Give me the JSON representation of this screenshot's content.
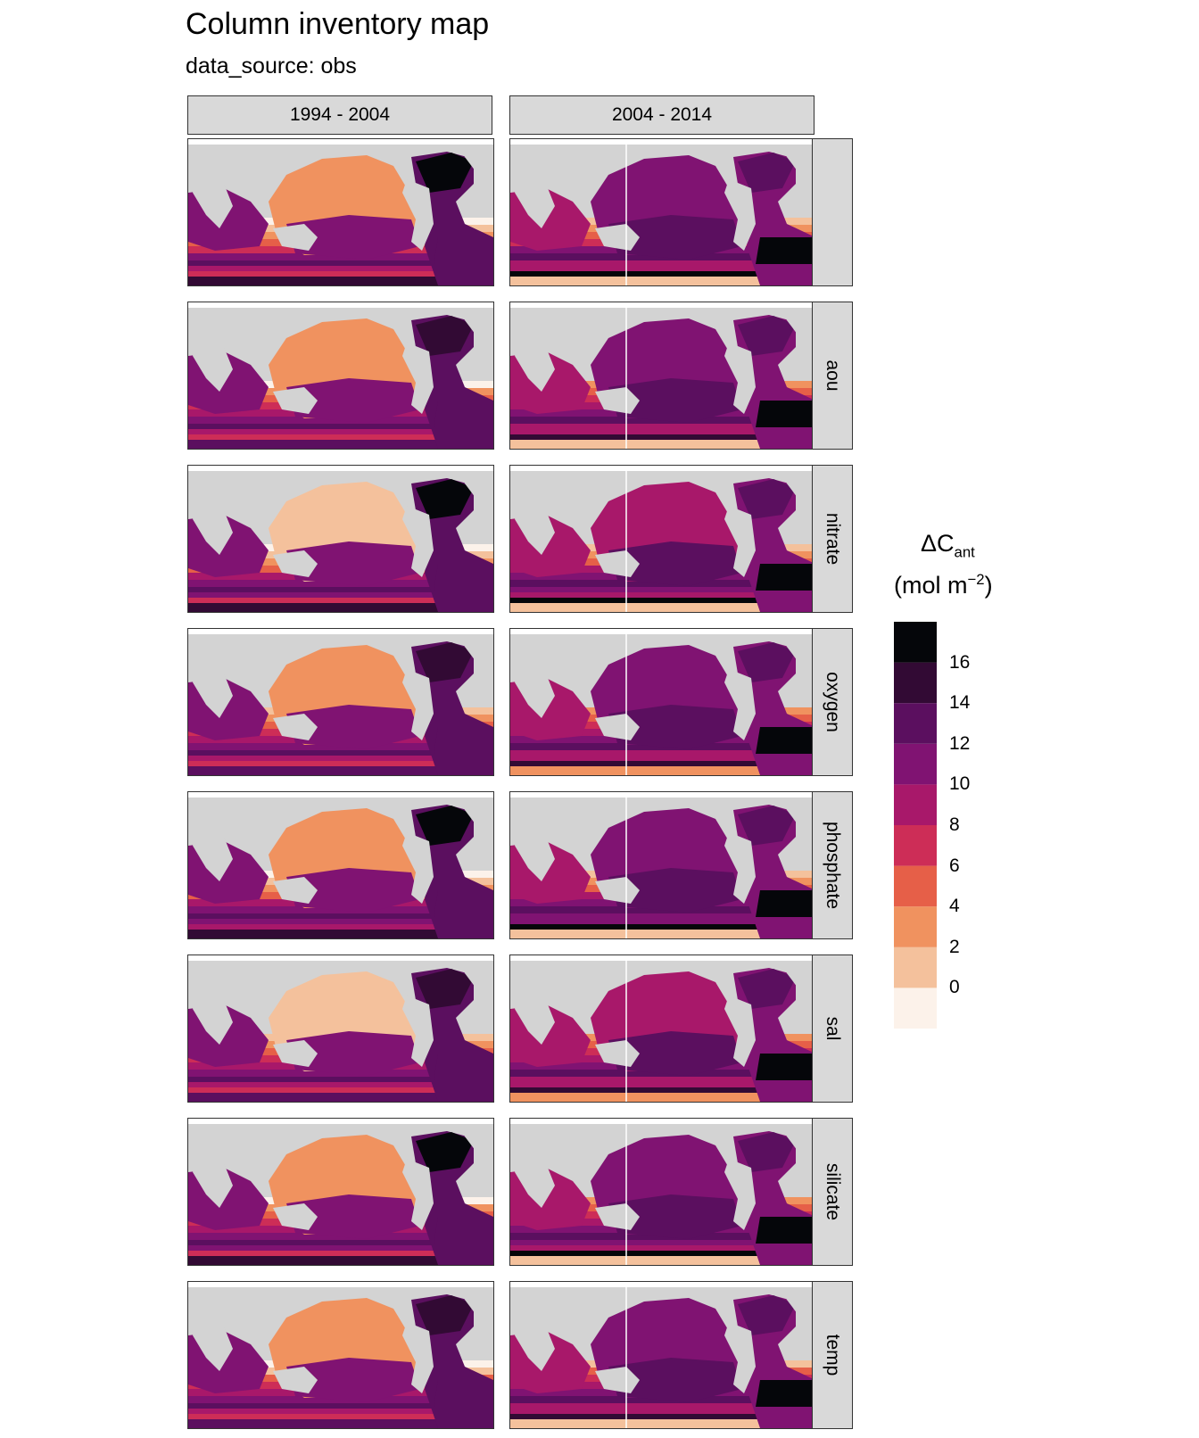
{
  "title": "Column inventory map",
  "subtitle": "data_source: obs",
  "columns": [
    "1994 - 2004",
    "2004 - 2014"
  ],
  "rows": [
    "",
    "aou",
    "nitrate",
    "oxygen",
    "phosphate",
    "sal",
    "silicate",
    "temp"
  ],
  "legend": {
    "title_main": "ΔC",
    "title_sub": "ant",
    "unit_prefix": "(mol m",
    "unit_sup": "−2",
    "unit_suffix": ")",
    "tick_labels": [
      "16",
      "14",
      "12",
      "10",
      "8",
      "6",
      "4",
      "2",
      "0"
    ],
    "tick_values": [
      16,
      14,
      12,
      10,
      8,
      6,
      4,
      2,
      0
    ],
    "bins": [
      {
        "range": [
          -2,
          0
        ],
        "color": "#fcf2ea"
      },
      {
        "range": [
          0,
          2
        ],
        "color": "#f4c19c"
      },
      {
        "range": [
          2,
          4
        ],
        "color": "#f0925f"
      },
      {
        "range": [
          4,
          6
        ],
        "color": "#e65f48"
      },
      {
        "range": [
          6,
          8
        ],
        "color": "#cd2d57"
      },
      {
        "range": [
          8,
          10
        ],
        "color": "#a8186a"
      },
      {
        "range": [
          10,
          12
        ],
        "color": "#801372"
      },
      {
        "range": [
          12,
          14
        ],
        "color": "#5b0f5f"
      },
      {
        "range": [
          14,
          16
        ],
        "color": "#320a34"
      },
      {
        "range": [
          16,
          18
        ],
        "color": "#05060a"
      }
    ]
  },
  "map_colors": {
    "land": "#d3d3d3",
    "missing": "#ffffff"
  }
}
